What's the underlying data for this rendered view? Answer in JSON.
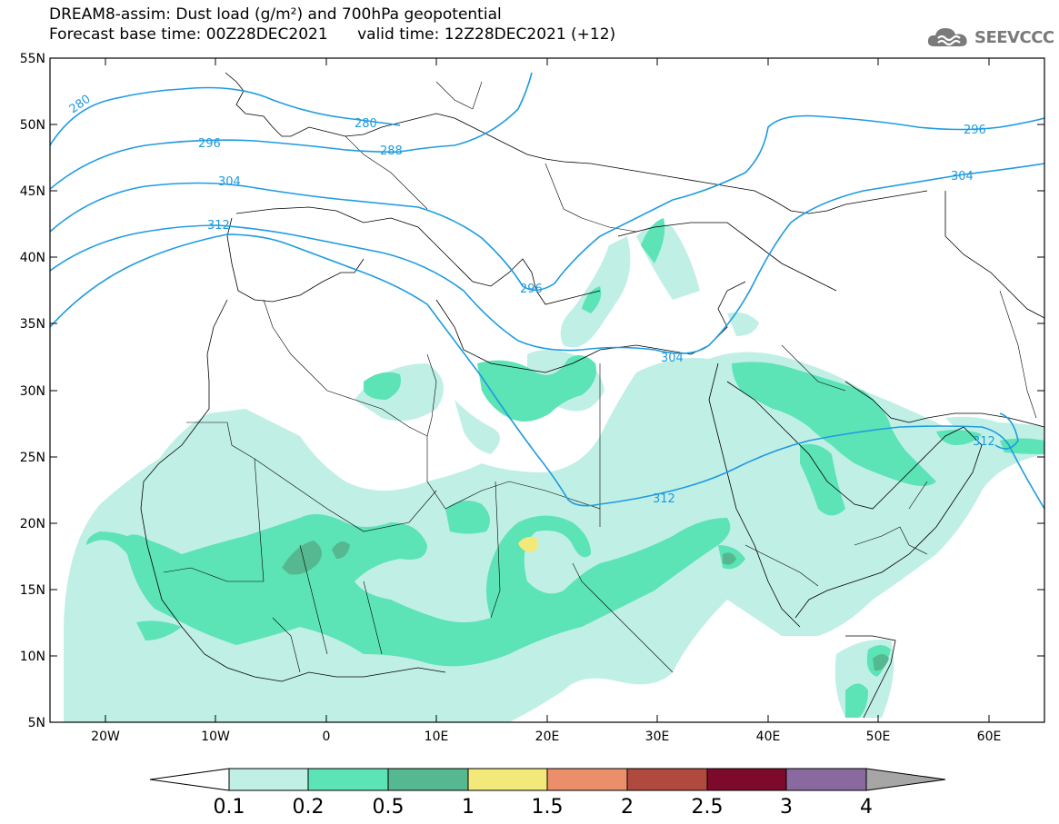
{
  "title": {
    "line1": "DREAM8-assim: Dust load (g/m²) and 700hPa geopotential",
    "line2": "Forecast base time: 00Z28DEC2021      valid time: 12Z28DEC2021 (+12)"
  },
  "logo": {
    "text": "SEEVCCC",
    "icon": "cloud-icon"
  },
  "map": {
    "lon_range": [
      -25,
      65
    ],
    "lat_range": [
      5,
      55
    ],
    "lat_ticks": [
      "55N",
      "50N",
      "45N",
      "40N",
      "35N",
      "30N",
      "25N",
      "20N",
      "15N",
      "10N",
      "5N"
    ],
    "lon_ticks": [
      "20W",
      "10W",
      "0",
      "10E",
      "20E",
      "30E",
      "40E",
      "50E",
      "60E"
    ]
  },
  "contours": {
    "color": "#1e9be0",
    "labels": [
      "280",
      "280",
      "288",
      "296",
      "296",
      "296",
      "304",
      "304",
      "304",
      "312",
      "312",
      "312"
    ]
  },
  "colorbar": {
    "levels": [
      "0.1",
      "0.2",
      "0.5",
      "1",
      "1.5",
      "2",
      "2.5",
      "3",
      "4"
    ],
    "colors": [
      "#ffffff",
      "#c0efe6",
      "#5ce3b6",
      "#56b890",
      "#f3e97a",
      "#eb8f6a",
      "#b04a3e",
      "#7d0a2a",
      "#8a6a9e",
      "#a6a6a6"
    ]
  }
}
